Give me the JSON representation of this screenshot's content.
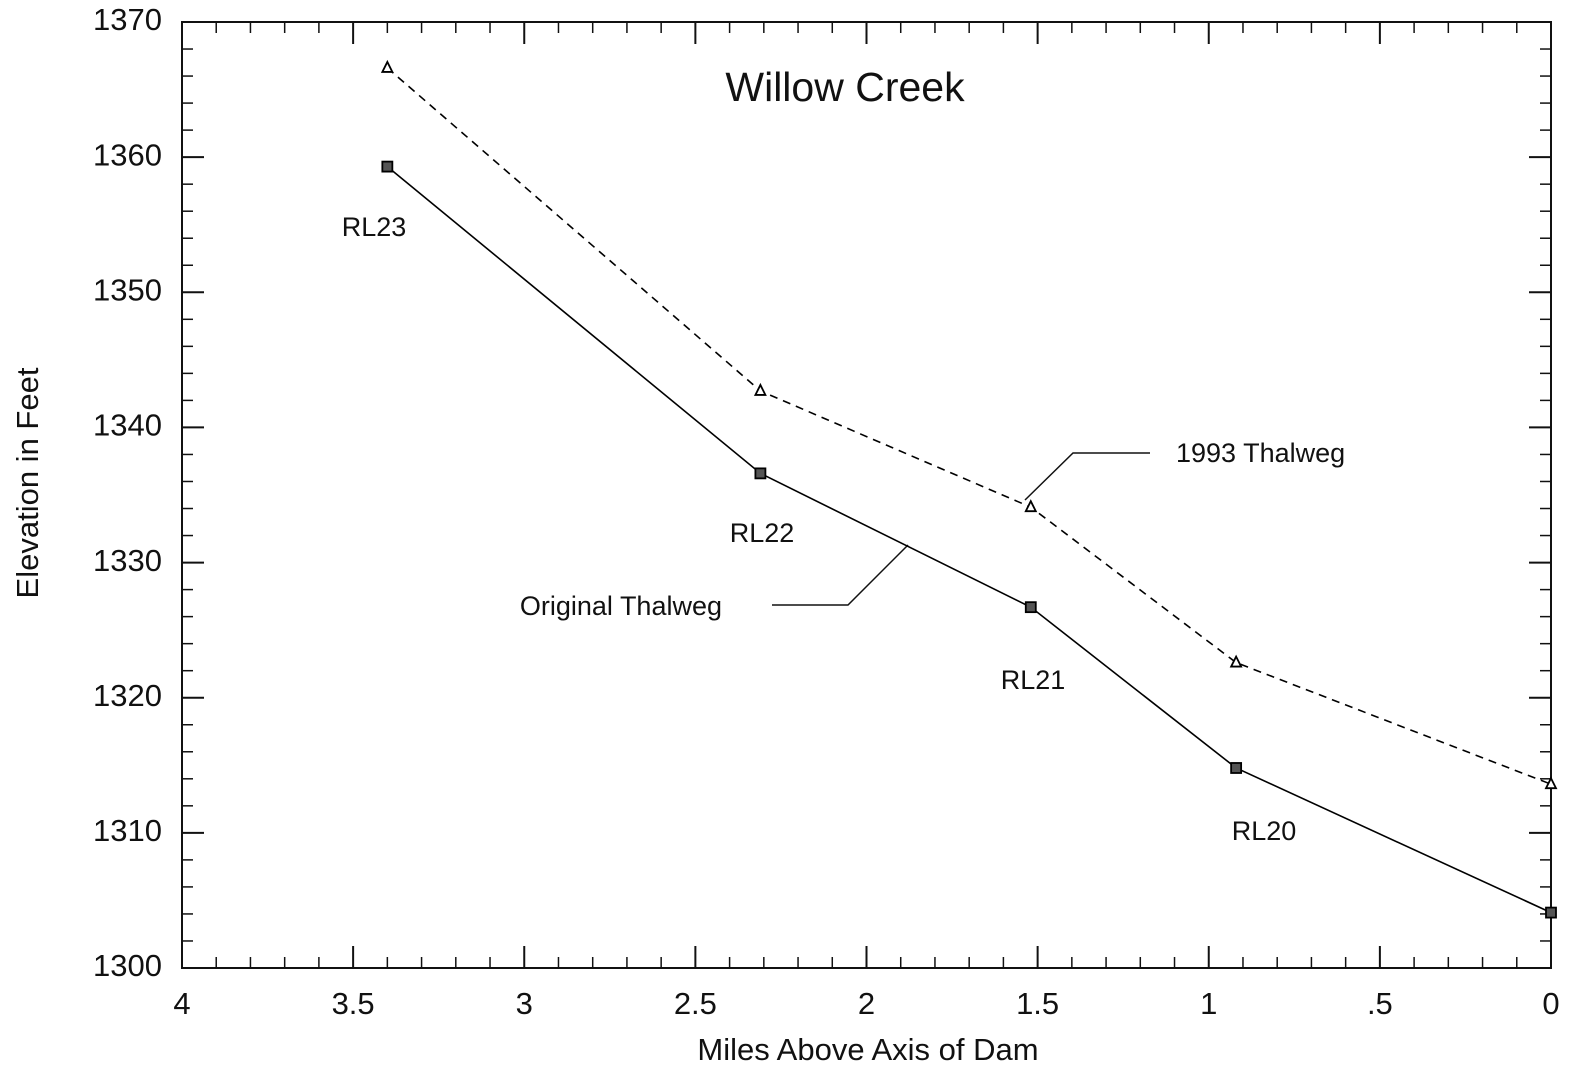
{
  "chart_data": {
    "type": "line",
    "title": "Willow Creek",
    "xlabel": "Miles Above Axis of Dam",
    "ylabel": "Elevation in Feet",
    "x": [
      3.4,
      2.31,
      1.52,
      0.92,
      0
    ],
    "series": [
      {
        "name": "Original Thalweg",
        "color": "#000000",
        "linestyle": "solid",
        "marker": "square",
        "values": [
          1359.3,
          1336.6,
          1326.7,
          1314.8,
          1304.1
        ]
      },
      {
        "name": "1993 Thalweg",
        "color": "#000000",
        "linestyle": "dashed",
        "marker": "triangle",
        "values": [
          1366.6,
          1342.7,
          1334.1,
          1322.6,
          1313.6
        ]
      }
    ],
    "annotations": [
      "RL23",
      "RL22",
      "RL21",
      "RL20"
    ],
    "xlim": [
      4,
      0
    ],
    "xticks": [
      4,
      3.5,
      3,
      2.5,
      2,
      1.5,
      1,
      {
        "value": 0.5,
        "label": ".5"
      },
      0
    ],
    "ylim": [
      1300,
      1370
    ],
    "yticks": [
      1300,
      1310,
      1320,
      1330,
      1340,
      1350,
      1360,
      1370
    ],
    "grid": false
  }
}
